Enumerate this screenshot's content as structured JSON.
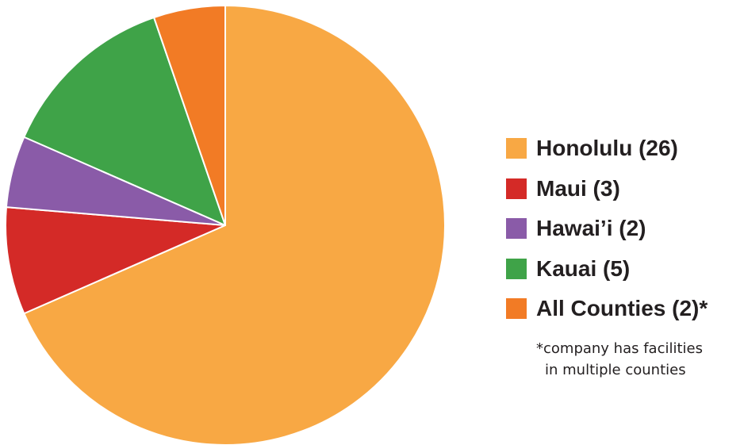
{
  "chart_data": {
    "type": "pie",
    "title": "",
    "slices": [
      {
        "label": "Honolulu (26)",
        "value": 26,
        "color": "#f8a844"
      },
      {
        "label": "Maui (3)",
        "value": 3,
        "color": "#d42a27"
      },
      {
        "label": "Hawai’i (2)",
        "value": 2,
        "color": "#8a5ba8"
      },
      {
        "label": "Kauai (5)",
        "value": 5,
        "color": "#3fa348"
      },
      {
        "label": "All Counties (2)*",
        "value": 2,
        "color": "#f27b25"
      }
    ],
    "legend_position": "right",
    "slice_border_color": "#ffffff"
  },
  "footnote": {
    "line1": "*company has facilities",
    "line2": "in multiple counties"
  }
}
